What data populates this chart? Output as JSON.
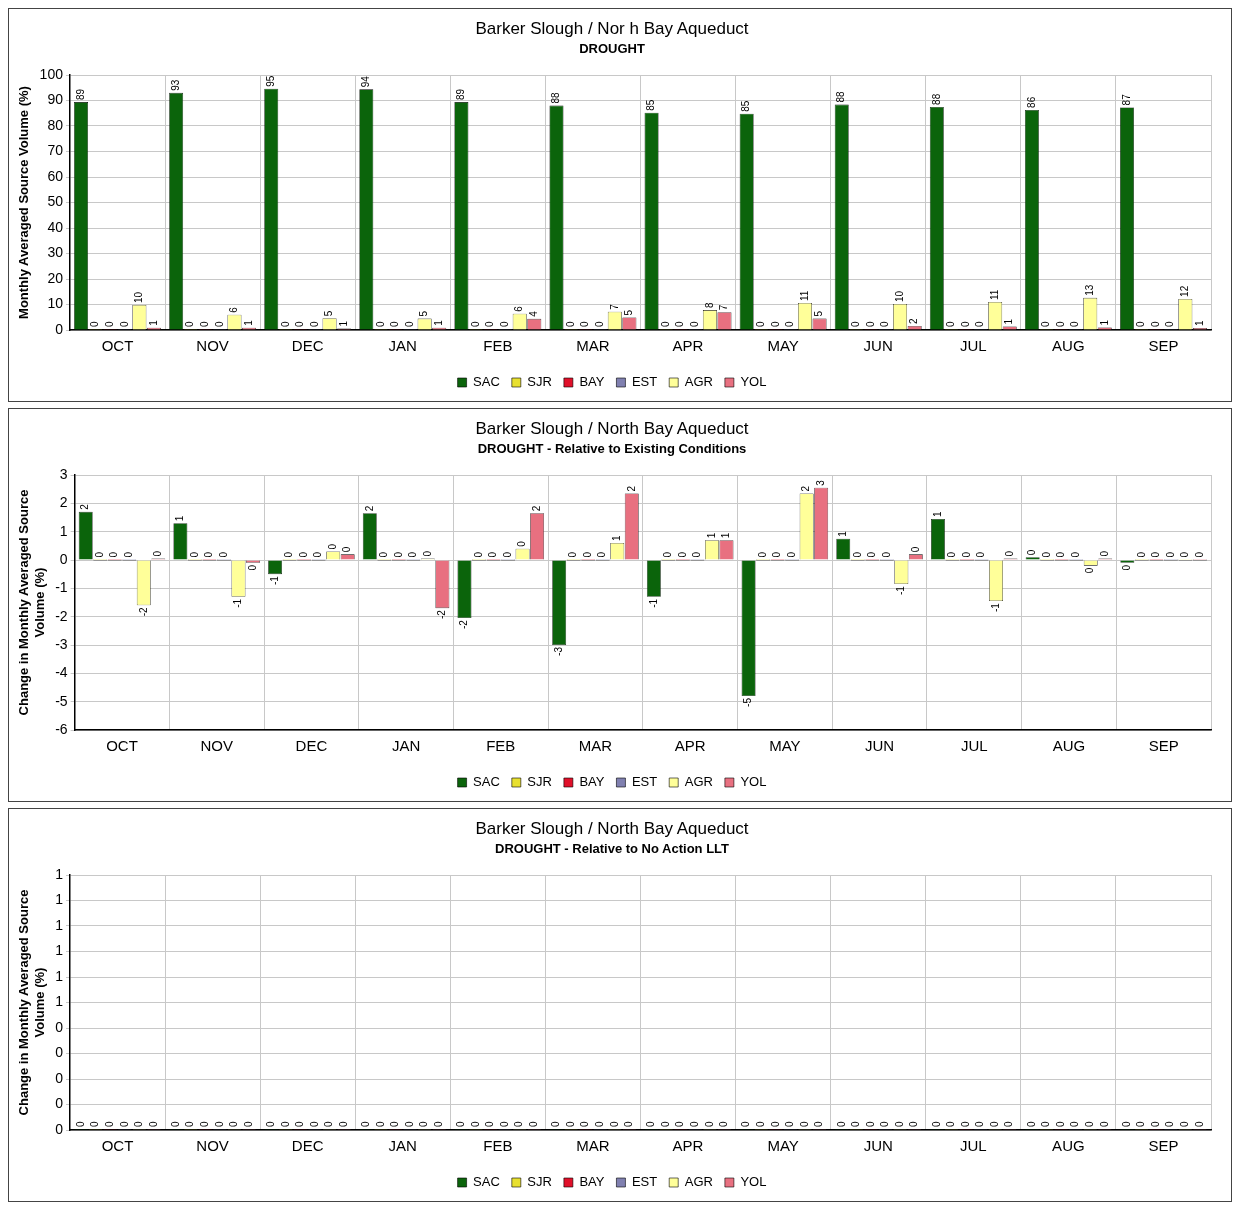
{
  "chart_data": [
    {
      "type": "bar",
      "title": "Barker Slough / Nor h Bay Aqueduct",
      "subtitle": "DROUGHT",
      "ylabel": "Monthly Averaged Source Volume (%)",
      "categories": [
        "OCT",
        "NOV",
        "DEC",
        "JAN",
        "FEB",
        "MAR",
        "APR",
        "MAY",
        "JUN",
        "JUL",
        "AUG",
        "SEP"
      ],
      "ylim": [
        0,
        100
      ],
      "yticks": [
        0,
        10,
        20,
        30,
        40,
        50,
        60,
        70,
        80,
        90,
        100
      ],
      "grid": true,
      "legend": "bottom",
      "series": [
        {
          "name": "SAC",
          "color": "#0b640b",
          "values": [
            89.4,
            93,
            94.6,
            94.4,
            89.4,
            88,
            85.2,
            84.8,
            88.4,
            87.5,
            86.3,
            87.3
          ],
          "value_labels": [
            "89",
            "93",
            "95",
            "94",
            "89",
            "88",
            "85",
            "85",
            "88",
            "88",
            "86",
            "87"
          ]
        },
        {
          "name": "SJR",
          "color": "#e8e030",
          "values": [
            0,
            0,
            0,
            0,
            0,
            0,
            0,
            0,
            0,
            0,
            0,
            0
          ],
          "value_labels": [
            "0",
            "0",
            "0",
            "0",
            "0",
            "0",
            "0",
            "0",
            "0",
            "0",
            "0",
            "0"
          ]
        },
        {
          "name": "BAY",
          "color": "#e0102a",
          "values": [
            0,
            0,
            0,
            0,
            0,
            0,
            0,
            0,
            0,
            0,
            0,
            0
          ],
          "value_labels": [
            "0",
            "0",
            "0",
            "0",
            "0",
            "0",
            "0",
            "0",
            "0",
            "0",
            "0",
            "0"
          ]
        },
        {
          "name": "EST",
          "color": "#8080b0",
          "values": [
            0,
            0,
            0,
            0,
            0,
            0,
            0,
            0,
            0,
            0,
            0,
            0
          ],
          "value_labels": [
            "0",
            "0",
            "0",
            "0",
            "0",
            "0",
            "0",
            "0",
            "0",
            "0",
            "0",
            "0"
          ]
        },
        {
          "name": "AGR",
          "color": "#ffff99",
          "values": [
            9.8,
            6,
            4.6,
            4.5,
            6.4,
            7.2,
            7.8,
            10.6,
            10.2,
            11,
            12.6,
            12.2
          ],
          "value_labels": [
            "10",
            "6",
            "5",
            "5",
            "6",
            "7",
            "8",
            "11",
            "10",
            "11",
            "13",
            "12"
          ]
        },
        {
          "name": "YOL",
          "color": "#e87080",
          "values": [
            0.9,
            0.9,
            0.6,
            0.9,
            4.4,
            4.9,
            7,
            4.5,
            1.6,
            1.4,
            1,
            0.8
          ],
          "value_labels": [
            "1",
            "1",
            "1",
            "1",
            "4",
            "5",
            "7",
            "5",
            "2",
            "1",
            "1",
            "1"
          ]
        }
      ]
    },
    {
      "type": "bar",
      "title": "Barker Slough / North Bay Aqueduct",
      "subtitle": "DROUGHT - Relative to Existing Conditions",
      "ylabel": "Change in Monthly Averaged Source Volume (%)",
      "categories": [
        "OCT",
        "NOV",
        "DEC",
        "JAN",
        "FEB",
        "MAR",
        "APR",
        "MAY",
        "JUN",
        "JUL",
        "AUG",
        "SEP"
      ],
      "ylim": [
        -6,
        3
      ],
      "yticks": [
        -6,
        -5,
        -4,
        -3,
        -2,
        -1,
        0,
        1,
        2,
        3
      ],
      "grid": true,
      "legend": "bottom",
      "series": [
        {
          "name": "SAC",
          "color": "#0b640b",
          "values": [
            1.7,
            1.3,
            -0.5,
            1.65,
            -2.05,
            -3.0,
            -1.3,
            -4.8,
            0.75,
            1.45,
            0.1,
            -0.1
          ],
          "value_labels": [
            "2",
            "1",
            "-1",
            "2",
            "-2",
            "-3",
            "-1",
            "-5",
            "1",
            "1",
            "0",
            "0"
          ]
        },
        {
          "name": "SJR",
          "color": "#e8e030",
          "values": [
            0,
            0,
            0,
            0,
            0,
            0,
            0,
            0,
            0,
            0,
            0,
            0
          ],
          "value_labels": [
            "0",
            "0",
            "0",
            "0",
            "0",
            "0",
            "0",
            "0",
            "0",
            "0",
            "0",
            "0"
          ]
        },
        {
          "name": "BAY",
          "color": "#e0102a",
          "values": [
            0,
            0,
            0,
            0,
            0,
            0,
            0,
            0,
            0,
            0,
            0,
            0
          ],
          "value_labels": [
            "0",
            "0",
            "0",
            "0",
            "0",
            "0",
            "0",
            "0",
            "0",
            "0",
            "0",
            "0"
          ]
        },
        {
          "name": "EST",
          "color": "#8080b0",
          "values": [
            0,
            0,
            0,
            0,
            0,
            0,
            0,
            0,
            0,
            0,
            0,
            0
          ],
          "value_labels": [
            "0",
            "0",
            "0",
            "0",
            "0",
            "0",
            "0",
            "0",
            "0",
            "0",
            "0",
            "0"
          ]
        },
        {
          "name": "AGR",
          "color": "#ffff99",
          "values": [
            -1.6,
            -1.3,
            0.3,
            0.05,
            0.4,
            0.6,
            0.7,
            2.35,
            -0.85,
            -1.45,
            -0.2,
            0
          ],
          "value_labels": [
            "-2",
            "-1",
            "0",
            "0",
            "0",
            "1",
            "1",
            "2",
            "-1",
            "-1",
            "0",
            "0"
          ]
        },
        {
          "name": "YOL",
          "color": "#e87080",
          "values": [
            0.05,
            -0.1,
            0.2,
            -1.7,
            1.65,
            2.35,
            0.7,
            2.55,
            0.2,
            0.05,
            0.05,
            0
          ],
          "value_labels": [
            "0",
            "0",
            "0",
            "-2",
            "2",
            "2",
            "1",
            "3",
            "0",
            "0",
            "0",
            "0"
          ]
        }
      ]
    },
    {
      "type": "bar",
      "title": "Barker Slough / North Bay Aqueduct",
      "subtitle": "DROUGHT - Relative to No Action LLT",
      "ylabel": "Change in Monthly Averaged Source Volume (%)",
      "categories": [
        "OCT",
        "NOV",
        "DEC",
        "JAN",
        "FEB",
        "MAR",
        "APR",
        "MAY",
        "JUN",
        "JUL",
        "AUG",
        "SEP"
      ],
      "ylim": [
        0,
        1
      ],
      "yticks": [
        0,
        {
          "value": 0.1,
          "label": "0"
        },
        {
          "value": 0.2,
          "label": "0"
        },
        {
          "value": 0.3,
          "label": "0"
        },
        {
          "value": 0.4,
          "label": "0"
        },
        {
          "value": 0.5,
          "label": "1"
        },
        {
          "value": 0.6,
          "label": "1"
        },
        {
          "value": 0.7,
          "label": "1"
        },
        {
          "value": 0.8,
          "label": "1"
        },
        {
          "value": 0.9,
          "label": "1"
        },
        1
      ],
      "grid": true,
      "legend": "bottom",
      "data_labels": true,
      "series": [
        {
          "name": "SAC",
          "color": "#0b640b",
          "values": [
            0,
            0,
            0,
            0,
            0,
            0,
            0,
            0,
            0,
            0,
            0,
            0
          ]
        },
        {
          "name": "SJR",
          "color": "#e8e030",
          "values": [
            0,
            0,
            0,
            0,
            0,
            0,
            0,
            0,
            0,
            0,
            0,
            0
          ]
        },
        {
          "name": "BAY",
          "color": "#e0102a",
          "values": [
            0,
            0,
            0,
            0,
            0,
            0,
            0,
            0,
            0,
            0,
            0,
            0
          ]
        },
        {
          "name": "EST",
          "color": "#8080b0",
          "values": [
            0,
            0,
            0,
            0,
            0,
            0,
            0,
            0,
            0,
            0,
            0,
            0
          ]
        },
        {
          "name": "AGR",
          "color": "#ffff99",
          "values": [
            0,
            0,
            0,
            0,
            0,
            0,
            0,
            0,
            0,
            0,
            0,
            0
          ]
        },
        {
          "name": "YOL",
          "color": "#e87080",
          "values": [
            0,
            0,
            0,
            0,
            0,
            0,
            0,
            0,
            0,
            0,
            0,
            0
          ]
        }
      ]
    }
  ]
}
